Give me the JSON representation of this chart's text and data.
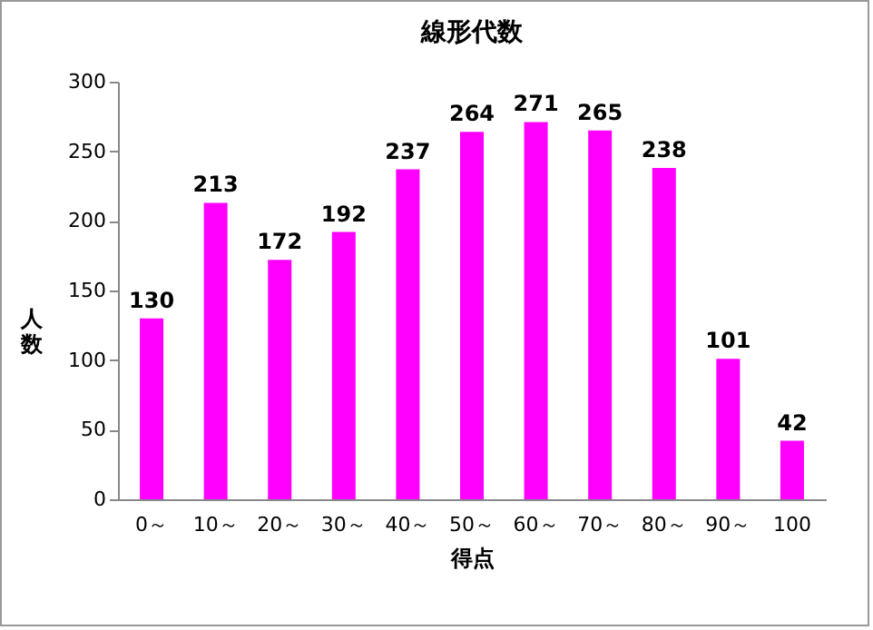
{
  "chart_data": {
    "type": "bar",
    "title": "線形代数",
    "xlabel": "得点",
    "ylabel": "人数",
    "categories": [
      "0～",
      "10～",
      "20～",
      "30～",
      "40～",
      "50～",
      "60～",
      "70～",
      "80～",
      "90～",
      "100"
    ],
    "values": [
      130,
      213,
      172,
      192,
      237,
      264,
      271,
      265,
      238,
      101,
      42
    ],
    "color": "#ff00ff",
    "ylim": [
      0,
      300
    ],
    "yticks": [
      0,
      50,
      100,
      150,
      200,
      250,
      300
    ],
    "grid": false,
    "data_labels": true
  }
}
